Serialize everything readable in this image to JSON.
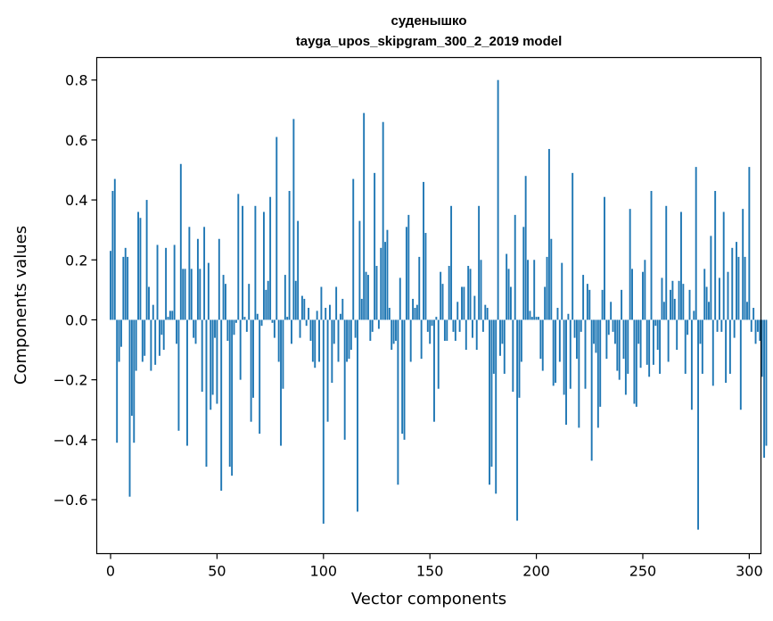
{
  "chart_data": {
    "type": "bar",
    "title_line1": "суденышко",
    "title_line2": "tayga_upos_skipgram_300_2_2019 model",
    "xlabel": "Vector components",
    "ylabel": "Components values",
    "xlim": [
      -6.5,
      305.5
    ],
    "ylim": [
      -0.78,
      0.875
    ],
    "xticks": [
      0,
      50,
      100,
      150,
      200,
      250,
      300
    ],
    "xtick_labels": [
      "0",
      "50",
      "100",
      "150",
      "200",
      "250",
      "300"
    ],
    "yticks": [
      -0.6,
      -0.4,
      -0.2,
      0.0,
      0.2,
      0.4,
      0.6,
      0.8
    ],
    "ytick_labels": [
      "−0.6",
      "−0.4",
      "−0.2",
      "0.0",
      "0.2",
      "0.4",
      "0.6",
      "0.8"
    ],
    "bar_color": "#1f77b4",
    "values": [
      0.23,
      0.43,
      0.47,
      -0.41,
      -0.14,
      -0.09,
      0.21,
      0.24,
      0.21,
      -0.59,
      -0.32,
      -0.41,
      -0.17,
      0.36,
      0.34,
      -0.14,
      -0.12,
      0.4,
      0.11,
      -0.17,
      0.05,
      -0.15,
      0.25,
      -0.12,
      -0.05,
      -0.1,
      0.24,
      0.01,
      0.03,
      0.03,
      0.25,
      -0.08,
      -0.37,
      0.52,
      0.17,
      0.17,
      -0.42,
      0.31,
      0.17,
      -0.06,
      -0.08,
      0.27,
      0.17,
      -0.24,
      0.31,
      -0.49,
      0.19,
      -0.3,
      -0.25,
      -0.06,
      -0.28,
      0.27,
      -0.57,
      0.15,
      0.12,
      -0.07,
      -0.49,
      -0.52,
      -0.05,
      -0.01,
      0.42,
      -0.2,
      0.38,
      0.01,
      -0.04,
      0.12,
      -0.34,
      -0.26,
      0.38,
      0.02,
      -0.38,
      -0.02,
      0.36,
      0.1,
      0.13,
      0.41,
      -0.01,
      -0.06,
      0.61,
      -0.14,
      -0.42,
      -0.23,
      0.15,
      0.01,
      0.43,
      -0.08,
      0.67,
      0.13,
      0.33,
      -0.06,
      0.08,
      0.07,
      -0.02,
      0.04,
      -0.07,
      -0.14,
      -0.16,
      0.03,
      -0.14,
      0.11,
      -0.68,
      0.04,
      -0.34,
      0.05,
      -0.21,
      -0.08,
      0.11,
      -0.14,
      0.02,
      0.07,
      -0.4,
      -0.14,
      -0.13,
      -0.1,
      0.47,
      -0.06,
      -0.64,
      0.33,
      0.07,
      0.69,
      0.16,
      0.15,
      -0.07,
      -0.04,
      0.49,
      0.18,
      -0.03,
      0.24,
      0.66,
      0.26,
      0.3,
      0.04,
      -0.1,
      -0.08,
      -0.07,
      -0.55,
      0.14,
      -0.38,
      -0.4,
      0.31,
      0.35,
      -0.14,
      0.07,
      0.04,
      0.05,
      0.21,
      -0.13,
      0.46,
      0.29,
      -0.04,
      -0.08,
      -0.02,
      -0.34,
      0.01,
      -0.23,
      0.16,
      0.12,
      -0.07,
      -0.07,
      0.18,
      0.38,
      -0.04,
      -0.07,
      0.06,
      -0.04,
      0.11,
      0.11,
      -0.1,
      0.18,
      0.17,
      -0.06,
      0.08,
      -0.1,
      0.38,
      0.2,
      -0.04,
      0.05,
      0.04,
      -0.55,
      -0.49,
      -0.18,
      -0.58,
      0.8,
      -0.12,
      -0.08,
      -0.18,
      0.22,
      0.17,
      0.11,
      -0.24,
      0.35,
      -0.67,
      -0.26,
      -0.14,
      0.31,
      0.48,
      0.2,
      0.03,
      0.01,
      0.2,
      0.01,
      0.01,
      -0.13,
      -0.17,
      0.11,
      0.21,
      0.57,
      0.27,
      -0.22,
      -0.21,
      0.04,
      -0.14,
      0.19,
      -0.25,
      -0.35,
      0.02,
      -0.23,
      0.49,
      -0.06,
      -0.13,
      -0.36,
      -0.04,
      0.15,
      -0.23,
      0.12,
      0.1,
      -0.47,
      -0.08,
      -0.11,
      -0.36,
      -0.29,
      0.1,
      0.41,
      -0.13,
      -0.05,
      0.06,
      -0.04,
      -0.08,
      -0.17,
      -0.2,
      0.1,
      -0.13,
      -0.25,
      -0.18,
      0.37,
      0.17,
      -0.28,
      -0.29,
      -0.08,
      -0.16,
      0.16,
      0.2,
      -0.15,
      -0.19,
      0.43,
      -0.15,
      -0.02,
      -0.1,
      -0.18,
      0.14,
      0.06,
      0.38,
      -0.14,
      0.1,
      0.13,
      0.07,
      -0.1,
      0.13,
      0.36,
      0.12,
      -0.18,
      -0.05,
      0.1,
      -0.3,
      0.03,
      0.51,
      -0.7,
      -0.08,
      -0.18,
      0.17,
      0.11,
      0.06,
      0.28,
      -0.22,
      0.43,
      -0.04,
      0.14,
      -0.04,
      0.36,
      -0.21,
      0.16,
      -0.18,
      0.24,
      -0.06,
      0.26,
      0.21,
      -0.3,
      0.37,
      0.21,
      0.06,
      0.51,
      -0.04,
      0.04,
      -0.08,
      -0.04,
      -0.07,
      -0.19,
      -0.46,
      -0.42
    ]
  }
}
